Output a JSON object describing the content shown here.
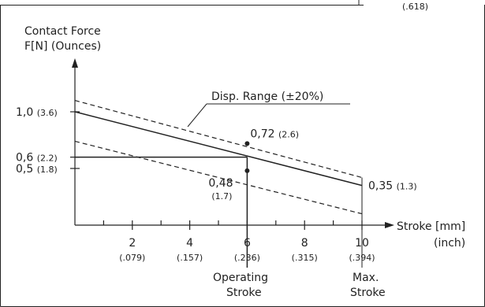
{
  "chart_data": {
    "type": "line",
    "ylabel_line1": "Contact Force",
    "ylabel_line2": "F[N] (Ounces)",
    "xlabel_mm": "Stroke [mm]",
    "xlabel_inch": "(inch)",
    "top_right_fragment": "(.618)",
    "xlim": [
      0,
      11.5
    ],
    "ylim": [
      0,
      1.4
    ],
    "x_ticks": [
      {
        "value": 2,
        "mm": "2",
        "inch": "(.079)"
      },
      {
        "value": 4,
        "mm": "4",
        "inch": "(.157)"
      },
      {
        "value": 6,
        "mm": "6",
        "inch": "(.236)"
      },
      {
        "value": 8,
        "mm": "8",
        "inch": "(.315)"
      },
      {
        "value": 10,
        "mm": "10",
        "inch": "(.394)"
      }
    ],
    "x_minor_ticks": [
      1,
      3,
      5,
      7,
      9
    ],
    "y_ticks": [
      {
        "value": 1.0,
        "label": "1,0",
        "sub": "(3.6)"
      },
      {
        "value": 0.6,
        "label": "0,6",
        "sub": "(2.2)"
      },
      {
        "value": 0.5,
        "label": "0,5",
        "sub": "(1.8)"
      }
    ],
    "series": [
      {
        "style": "solid",
        "x": [
          0,
          10
        ],
        "y": [
          1.0,
          0.35
        ]
      },
      {
        "style": "dashed",
        "x": [
          0,
          10
        ],
        "y": [
          1.1,
          0.42
        ]
      },
      {
        "style": "dashed",
        "x": [
          0,
          10
        ],
        "y": [
          0.74,
          0.1
        ]
      }
    ],
    "points": [
      {
        "x": 6,
        "y": 0.72,
        "label": "0,72",
        "sub": "(2.6)"
      },
      {
        "x": 6,
        "y": 0.48,
        "label": "0,48",
        "sub": "(1.7)"
      }
    ],
    "end_label": {
      "x": 10,
      "y": 0.35,
      "label": "0,35",
      "sub": "(1.3)"
    },
    "range_label": "Disp. Range (±20%)",
    "operating": {
      "x": 6,
      "y": 0.6,
      "line1": "Operating",
      "line2": "Stroke"
    },
    "max_stroke": {
      "x": 10,
      "line1": "Max.",
      "line2": "Stroke"
    }
  }
}
